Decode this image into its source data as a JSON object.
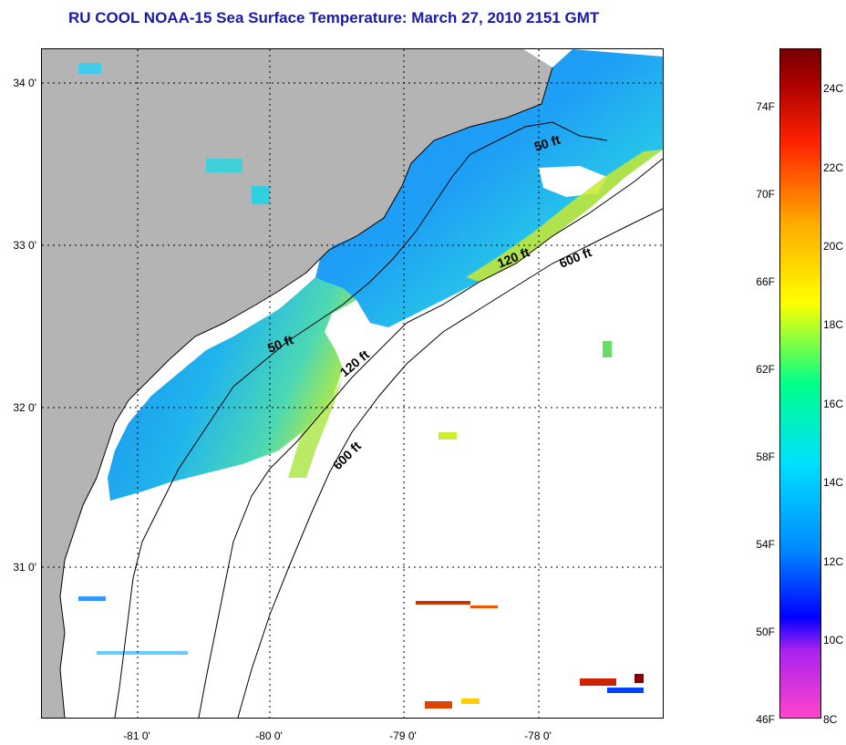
{
  "title": "RU COOL  NOAA-15  Sea Surface Temperature:  March 27, 2010 2151 GMT",
  "map": {
    "lat_labels": [
      "34 0'",
      "33 0'",
      "32 0'",
      "31 0'"
    ],
    "lon_labels": [
      "-81 0'",
      "-80 0'",
      "-79 0'",
      "-78 0'"
    ],
    "depth_labels": [
      "50 ft",
      "120 ft",
      "600 ft",
      "50 ft",
      "120 ft",
      "600 ft"
    ],
    "land_color": "#b4b4b4"
  },
  "colorbar": {
    "fahrenheit_labels": [
      "74F",
      "70F",
      "66F",
      "62F",
      "58F",
      "54F",
      "50F",
      "46F"
    ],
    "celsius_labels": [
      "24C",
      "22C",
      "20C",
      "18C",
      "16C",
      "14C",
      "12C",
      "10C",
      "8C"
    ],
    "colors": [
      "#ff44cc",
      "#0000ff",
      "#00e0ff",
      "#00ff88",
      "#ffff00",
      "#ff2200",
      "#770000"
    ]
  }
}
